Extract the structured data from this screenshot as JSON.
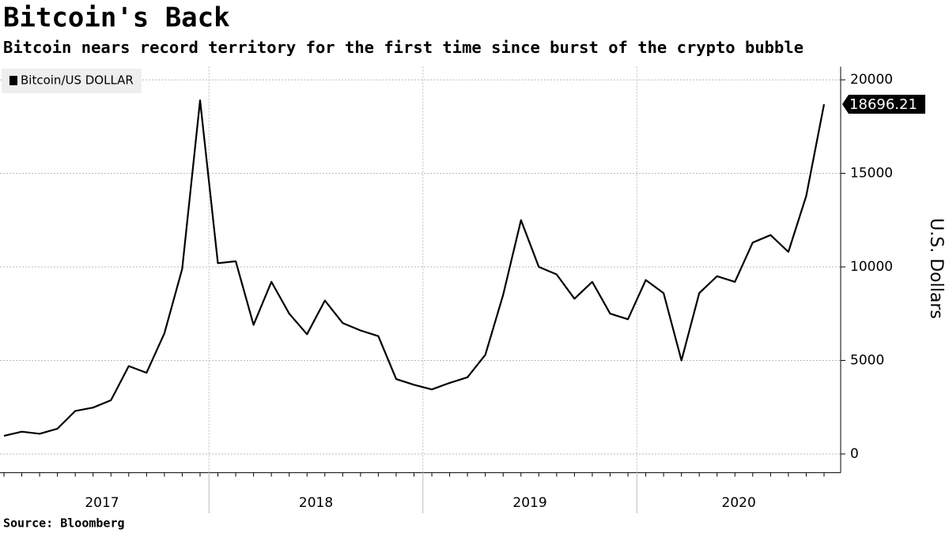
{
  "chart_data": {
    "type": "line",
    "title": "Bitcoin's Back",
    "subtitle": "Bitcoin nears record territory for the first time since burst of the crypto bubble",
    "y_axis_label": "U.S. Dollars",
    "source": "Source: Bloomberg",
    "year_labels": [
      "2017",
      "2018",
      "2019",
      "2020"
    ],
    "x": [
      "2017-01",
      "2017-02",
      "2017-03",
      "2017-04",
      "2017-05",
      "2017-06",
      "2017-07",
      "2017-08",
      "2017-09",
      "2017-10",
      "2017-11",
      "2017-12",
      "2018-01",
      "2018-02",
      "2018-03",
      "2018-04",
      "2018-05",
      "2018-06",
      "2018-07",
      "2018-08",
      "2018-09",
      "2018-10",
      "2018-11",
      "2018-12",
      "2019-01",
      "2019-02",
      "2019-03",
      "2019-04",
      "2019-05",
      "2019-06",
      "2019-07",
      "2019-08",
      "2019-09",
      "2019-10",
      "2019-11",
      "2019-12",
      "2020-01",
      "2020-02",
      "2020-03",
      "2020-04",
      "2020-05",
      "2020-06",
      "2020-07",
      "2020-08",
      "2020-09",
      "2020-10",
      "2020-11"
    ],
    "series": [
      {
        "name": "Bitcoin/US DOLLAR",
        "color": "#000000",
        "values": [
          970,
          1190,
          1080,
          1350,
          2300,
          2480,
          2870,
          4700,
          4340,
          6450,
          9900,
          18900,
          10200,
          10300,
          6900,
          9200,
          7500,
          6400,
          8200,
          7000,
          6600,
          6300,
          4000,
          3700,
          3450,
          3800,
          4100,
          5300,
          8500,
          12500,
          10000,
          9600,
          8300,
          9200,
          7500,
          7200,
          9300,
          8600,
          5000,
          8600,
          9500,
          9200,
          11300,
          11700,
          10800,
          13800,
          18696.21
        ]
      }
    ],
    "ylim": [
      -1000,
      20700
    ],
    "yticks": [
      0,
      5000,
      10000,
      15000,
      20000
    ],
    "grid": true,
    "legend": "top-left"
  }
}
